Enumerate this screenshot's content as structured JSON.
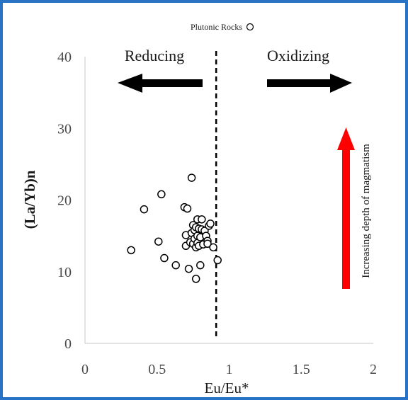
{
  "colors": {
    "frame": "#2a72c4",
    "accent_arrow": "#ff0000",
    "arrow": "#000000",
    "marker_stroke": "#000000",
    "marker_fill": "#ffffff"
  },
  "chart_data": {
    "type": "scatter",
    "title": "",
    "xlabel": "Eu/Eu*",
    "ylabel": "(La/Yb)n",
    "xlim": [
      0,
      2
    ],
    "ylim": [
      0,
      40
    ],
    "x_ticks": [
      "0",
      "0.5",
      "1",
      "1.5",
      "2"
    ],
    "y_ticks": [
      "0",
      "10",
      "20",
      "30",
      "40"
    ],
    "grid": false,
    "legend": {
      "placement": "top-center",
      "entries": [
        "Plutonic Rocks"
      ],
      "marker": "open-circle"
    },
    "divider": {
      "x": 0.91,
      "style": "dashed"
    },
    "annotations": {
      "left_label": "Reducing",
      "right_label": "Oxidizing",
      "vertical_label": "Increasing depth of magmatism"
    },
    "series": [
      {
        "name": "Plutonic Rocks",
        "x": [
          0.32,
          0.41,
          0.51,
          0.53,
          0.55,
          0.63,
          0.69,
          0.7,
          0.7,
          0.71,
          0.72,
          0.73,
          0.74,
          0.74,
          0.75,
          0.75,
          0.76,
          0.76,
          0.77,
          0.77,
          0.77,
          0.78,
          0.78,
          0.78,
          0.79,
          0.79,
          0.8,
          0.8,
          0.81,
          0.81,
          0.82,
          0.83,
          0.84,
          0.85,
          0.85,
          0.86,
          0.87,
          0.89,
          0.92
        ],
        "y": [
          13.0,
          18.7,
          14.2,
          20.8,
          11.9,
          10.9,
          19.0,
          15.1,
          13.6,
          18.8,
          10.4,
          14.1,
          23.1,
          15.4,
          13.9,
          16.5,
          15.8,
          14.6,
          13.4,
          16.2,
          9.0,
          14.0,
          15.0,
          17.3,
          13.6,
          16.0,
          10.9,
          14.8,
          15.9,
          17.3,
          13.8,
          15.7,
          15.0,
          14.3,
          13.9,
          16.4,
          16.7,
          13.4,
          11.6
        ]
      }
    ]
  }
}
